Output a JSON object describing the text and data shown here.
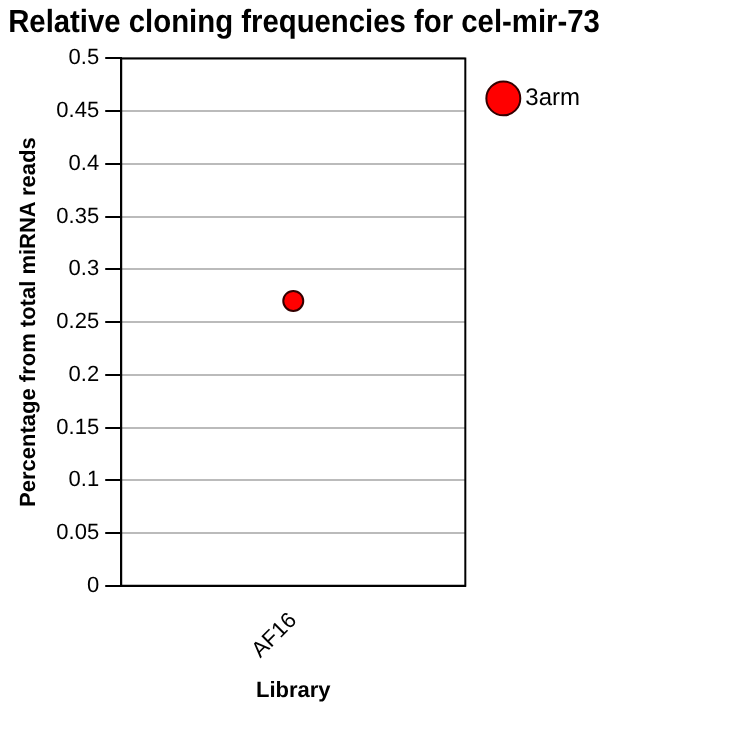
{
  "chart_data": {
    "type": "line",
    "title": "Relative cloning frequencies for cel-mir-73",
    "xlabel": "Library",
    "ylabel": "Percentage from total miRNA reads",
    "categories": [
      "AF16"
    ],
    "series": [
      {
        "name": "3arm",
        "color": "#ff0000",
        "values": [
          0.27
        ]
      }
    ],
    "ylim": [
      0,
      0.5
    ],
    "yticks": [
      0,
      0.05,
      0.1,
      0.15,
      0.2,
      0.25,
      0.3,
      0.35,
      0.4,
      0.45,
      0.5
    ],
    "grid": "y",
    "legend": "top right",
    "marker": "circle"
  }
}
